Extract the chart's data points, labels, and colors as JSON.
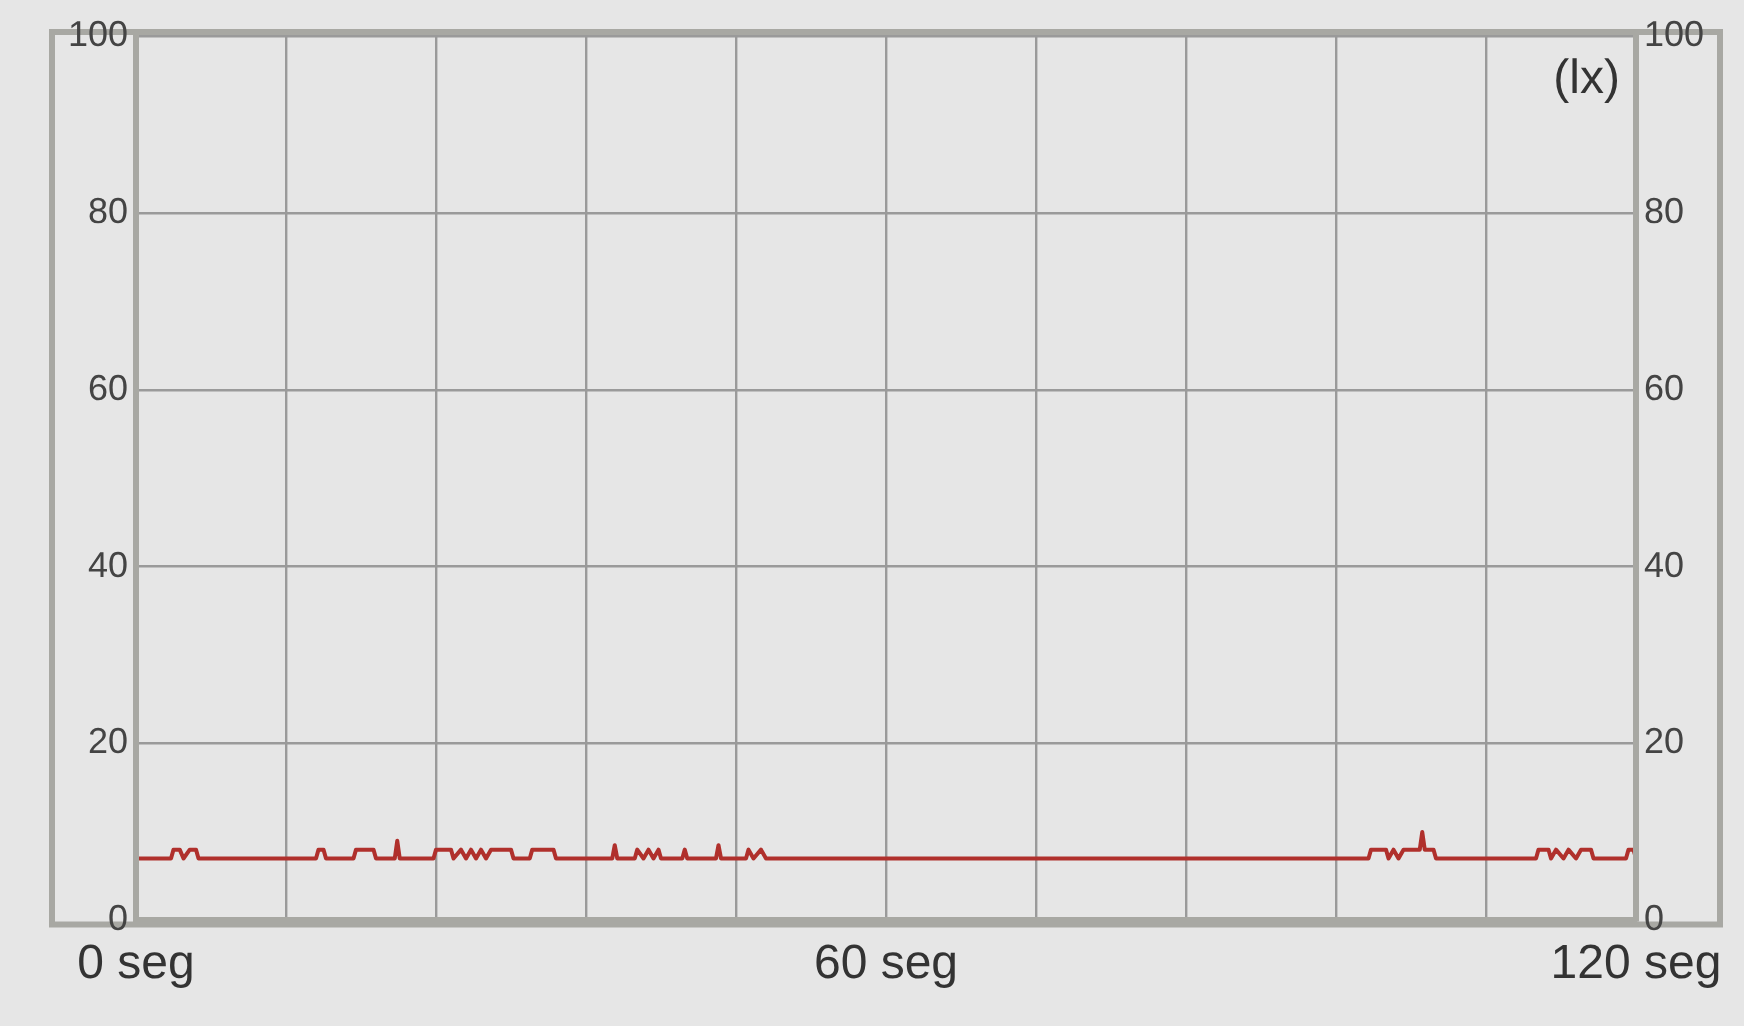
{
  "chart_data": {
    "type": "line",
    "annotations": [
      "(lx)"
    ],
    "x": [
      0,
      2.8,
      3,
      3.5,
      3.8,
      4.3,
      4.8,
      5,
      14.4,
      14.6,
      15,
      15.2,
      17.4,
      17.6,
      19,
      19.2,
      20.7,
      20.9,
      21.1,
      23.8,
      24,
      25.2,
      25.4,
      26,
      26.4,
      26.8,
      27.2,
      27.6,
      28,
      28.4,
      30,
      30.2,
      31.5,
      31.7,
      33.4,
      33.6,
      38.1,
      38.3,
      38.5,
      39.9,
      40.1,
      40.6,
      41,
      41.4,
      41.8,
      42,
      43.7,
      43.9,
      44.1,
      46.4,
      46.6,
      46.8,
      48.8,
      49,
      49.4,
      50,
      50.4,
      98.6,
      98.8,
      100,
      100.2,
      100.6,
      101,
      101.4,
      102.7,
      102.9,
      103.1,
      103.8,
      104,
      112,
      112.2,
      113,
      113.2,
      113.6,
      114.2,
      114.6,
      115.2,
      115.6,
      116.4,
      116.6,
      119.2,
      119.4,
      119.8,
      120
    ],
    "series": [
      {
        "color": "#b0302c",
        "values": [
          7,
          7,
          8,
          8,
          7,
          8,
          8,
          7,
          7,
          8,
          8,
          7,
          7,
          8,
          8,
          7,
          7,
          9,
          7,
          7,
          8,
          8,
          7,
          8,
          7,
          8,
          7,
          8,
          7,
          8,
          8,
          7,
          7,
          8,
          8,
          7,
          7,
          8.5,
          7,
          7,
          8,
          7,
          8,
          7,
          8,
          7,
          7,
          8,
          7,
          7,
          8.5,
          7,
          7,
          8,
          7,
          8,
          7,
          7,
          8,
          8,
          7,
          8,
          7,
          8,
          8,
          10,
          8,
          8,
          7,
          7,
          8,
          8,
          7,
          8,
          7,
          8,
          7,
          8,
          8,
          7,
          7,
          8,
          8,
          7
        ]
      }
    ],
    "xlim": [
      0,
      120
    ],
    "xticks": [
      {
        "value": 0,
        "label": "0 seg"
      },
      {
        "value": 12,
        "label": null
      },
      {
        "value": 24,
        "label": null
      },
      {
        "value": 36,
        "label": null
      },
      {
        "value": 48,
        "label": null
      },
      {
        "value": 60,
        "label": "60 seg"
      },
      {
        "value": 72,
        "label": null
      },
      {
        "value": 84,
        "label": null
      },
      {
        "value": 96,
        "label": null
      },
      {
        "value": 108,
        "label": null
      },
      {
        "value": 120,
        "label": "120 seg"
      }
    ],
    "ylim": [
      0,
      100
    ],
    "yticks": [
      0,
      20,
      40,
      60,
      80,
      100
    ],
    "y2lim": [
      0,
      100
    ],
    "y2ticks": [
      0,
      20,
      40,
      60,
      80,
      100
    ],
    "grid": true,
    "legend": false,
    "marker": "none",
    "line_style": "solid"
  }
}
